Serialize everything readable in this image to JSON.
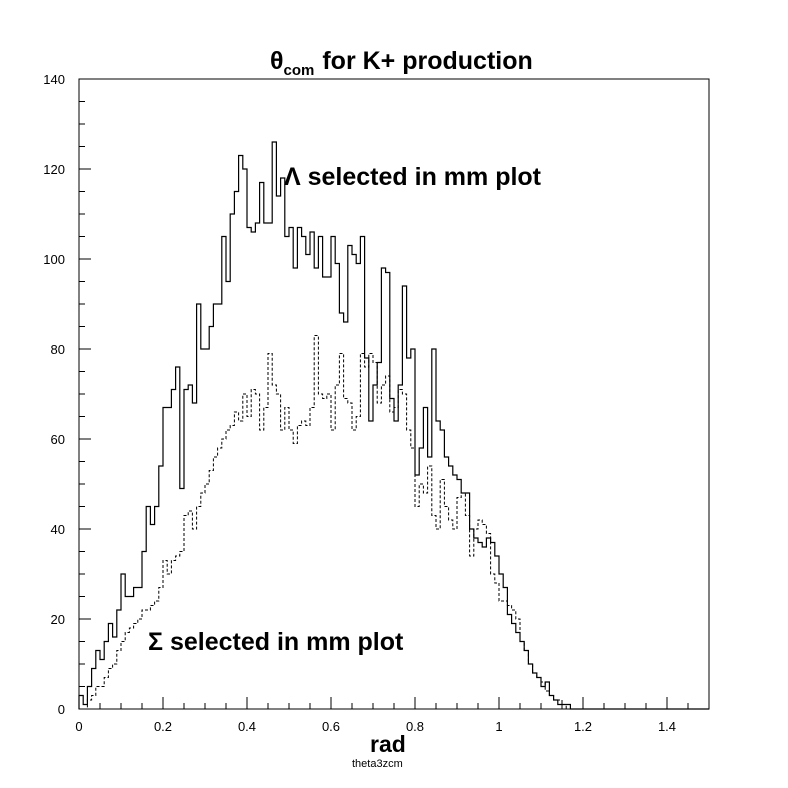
{
  "chart_data": {
    "type": "histogram",
    "title_main": "θ",
    "title_sub": "com",
    "title_rest": "for K+ production",
    "xlabel": "rad",
    "caption": "theta3zcm",
    "xlim": [
      0,
      1.5
    ],
    "ylim": [
      0,
      140
    ],
    "x_ticks": [
      "0",
      "0.2",
      "0.4",
      "0.6",
      "0.8",
      "1",
      "1.2",
      "1.4"
    ],
    "y_ticks": [
      "0",
      "20",
      "40",
      "60",
      "80",
      "100",
      "120",
      "140"
    ],
    "bin_width": 0.01,
    "series": [
      {
        "name": "Λ selected in mm plot",
        "style": "solid",
        "color": "#000000",
        "values": [
          3,
          1,
          5,
          9,
          13,
          11,
          15,
          19,
          16,
          22,
          30,
          25,
          25,
          27,
          27,
          35,
          45,
          41,
          45,
          54,
          67,
          67,
          71,
          76,
          49,
          71,
          72,
          68,
          90,
          80,
          80,
          85,
          90,
          90,
          105,
          95,
          110,
          115,
          123,
          120,
          107,
          106,
          108,
          117,
          108,
          108,
          126,
          114,
          118,
          105,
          107,
          98,
          107,
          105,
          101,
          106,
          98,
          105,
          96,
          96,
          105,
          99,
          88,
          86,
          103,
          101,
          99,
          105,
          78,
          64,
          72,
          77,
          98,
          97,
          69,
          64,
          72,
          94,
          78,
          80,
          52,
          58,
          67,
          56,
          80,
          64,
          62,
          56,
          54,
          52,
          51,
          48,
          48,
          40,
          38,
          37,
          36,
          38,
          37,
          34,
          30,
          27,
          21,
          19,
          17,
          15,
          13,
          10,
          8,
          7,
          5,
          6,
          3,
          2,
          1,
          1,
          1,
          0,
          0,
          0,
          0,
          0,
          0,
          0,
          0,
          0,
          0,
          0,
          0,
          0,
          0,
          0,
          0,
          0,
          0,
          0,
          0,
          0,
          0,
          0,
          0,
          0,
          0,
          0,
          0,
          0,
          0,
          0,
          0,
          0
        ]
      },
      {
        "name": "Σ selected in mm plot",
        "style": "dashed",
        "color": "#000000",
        "values": [
          0,
          0,
          2,
          3,
          5,
          5,
          7,
          9,
          10,
          13,
          15,
          17,
          18,
          19,
          20,
          22,
          22,
          23,
          24,
          27,
          33,
          30,
          33,
          34,
          35,
          43,
          44,
          40,
          45,
          48,
          50,
          53,
          56,
          58,
          60,
          62,
          63,
          66,
          64,
          70,
          65,
          71,
          70,
          62,
          67,
          79,
          72,
          70,
          62,
          67,
          62,
          59,
          63,
          64,
          63,
          67,
          83,
          70,
          69,
          70,
          62,
          72,
          79,
          69,
          68,
          62,
          65,
          79,
          76,
          79,
          77,
          68,
          72,
          74,
          66,
          67,
          71,
          70,
          62,
          58,
          45,
          50,
          48,
          54,
          43,
          40,
          51,
          45,
          42,
          40,
          47,
          48,
          43,
          34,
          40,
          42,
          41,
          39,
          30,
          28,
          24,
          24,
          23,
          22,
          20,
          15,
          13,
          10,
          8,
          7,
          6,
          4,
          3,
          2,
          2,
          1,
          0,
          0,
          0,
          0,
          0,
          0,
          0,
          0,
          0,
          0,
          0,
          0,
          0,
          0,
          0,
          0,
          0,
          0,
          0,
          0,
          0,
          0,
          0,
          0,
          0,
          0,
          0,
          0,
          0,
          0,
          0,
          0,
          0,
          0
        ]
      }
    ],
    "annotations": [
      {
        "text": "Λ selected in mm plot",
        "series": 0
      },
      {
        "text": "Σ selected in mm plot",
        "series": 1
      }
    ]
  }
}
